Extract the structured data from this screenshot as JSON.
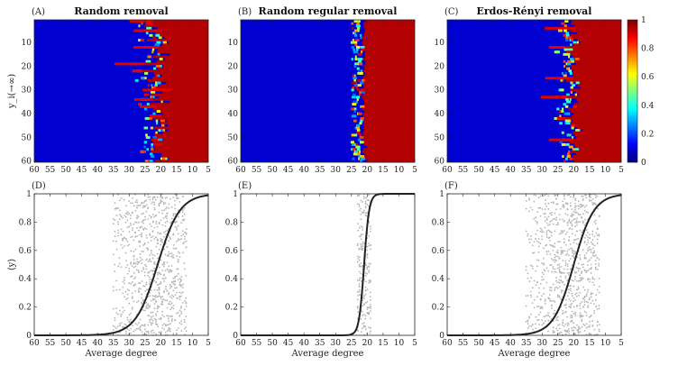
{
  "chart_data": [
    {
      "type": "heatmap",
      "panel_label": "(A)",
      "title": "Random removal",
      "ylabel": "y_i(→∞)",
      "x_ticks": [
        60,
        55,
        50,
        45,
        40,
        35,
        30,
        25,
        20,
        15,
        10,
        5
      ],
      "y_ticks": [
        10,
        20,
        30,
        40,
        50,
        60
      ],
      "xlim": [
        60,
        5
      ],
      "ylim": [
        1,
        60
      ],
      "transition_mean": 21,
      "transition_spread": 4
    },
    {
      "type": "heatmap",
      "panel_label": "(B)",
      "title": "Random regular removal",
      "x_ticks": [
        60,
        55,
        50,
        45,
        40,
        35,
        30,
        25,
        20,
        15,
        10,
        5
      ],
      "y_ticks": [
        10,
        20,
        30,
        40,
        50,
        60
      ],
      "xlim": [
        60,
        5
      ],
      "ylim": [
        1,
        60
      ],
      "transition_mean": 21,
      "transition_spread": 0.8
    },
    {
      "type": "heatmap",
      "panel_label": "(C)",
      "title": "Erdos-Rényi removal",
      "x_ticks": [
        60,
        55,
        50,
        45,
        40,
        35,
        30,
        25,
        20,
        15,
        10,
        5
      ],
      "y_ticks": [
        10,
        20,
        30,
        40,
        50,
        60
      ],
      "xlim": [
        60,
        5
      ],
      "ylim": [
        1,
        60
      ],
      "transition_mean": 20,
      "transition_spread": 3,
      "colorbar": {
        "ticks": [
          0,
          0.2,
          0.4,
          0.6,
          0.8,
          1
        ],
        "range": [
          0,
          1
        ],
        "colormap": "jet"
      }
    },
    {
      "type": "scatter",
      "panel_label": "(D)",
      "xlabel": "Average degree",
      "ylabel": "⟨y⟩",
      "x_ticks": [
        60,
        55,
        50,
        45,
        40,
        35,
        30,
        25,
        20,
        15,
        10,
        5
      ],
      "y_ticks": [
        0,
        0.2,
        0.4,
        0.6,
        0.8,
        1
      ],
      "xlim": [
        60,
        5
      ],
      "ylim": [
        0,
        1
      ],
      "curve": {
        "type": "logistic",
        "midpoint": 21,
        "scale": 3.5,
        "color": "#222222"
      },
      "scatter_color": "#b4b4b4",
      "scatter_x_range": [
        12,
        35
      ]
    },
    {
      "type": "scatter",
      "panel_label": "(E)",
      "xlabel": "Average degree",
      "x_ticks": [
        60,
        55,
        50,
        45,
        40,
        35,
        30,
        25,
        20,
        15,
        10,
        5
      ],
      "y_ticks": [
        0,
        0.2,
        0.4,
        0.6,
        0.8,
        1
      ],
      "xlim": [
        60,
        5
      ],
      "ylim": [
        0,
        1
      ],
      "curve": {
        "type": "logistic",
        "midpoint": 21,
        "scale": 0.8,
        "color": "#222222"
      },
      "scatter_color": "#b4b4b4",
      "scatter_x_range": [
        19,
        23
      ]
    },
    {
      "type": "scatter",
      "panel_label": "(F)",
      "xlabel": "Average degree",
      "x_ticks": [
        60,
        55,
        50,
        45,
        40,
        35,
        30,
        25,
        20,
        15,
        10,
        5
      ],
      "y_ticks": [
        0,
        0.2,
        0.4,
        0.6,
        0.8,
        1
      ],
      "xlim": [
        60,
        5
      ],
      "ylim": [
        0,
        1
      ],
      "curve": {
        "type": "logistic",
        "midpoint": 20,
        "scale": 3.2,
        "color": "#222222"
      },
      "scatter_color": "#b4b4b4",
      "scatter_x_range": [
        12,
        35
      ]
    }
  ]
}
